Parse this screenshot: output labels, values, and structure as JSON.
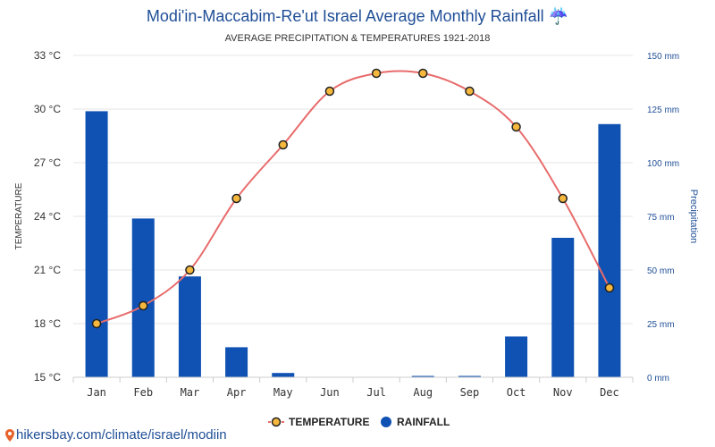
{
  "colors": {
    "title": "#1f4e96",
    "bar": "#0f52b3",
    "line": "#e86b6b",
    "marker_fill": "#f5b83d",
    "marker_stroke": "#222222",
    "grid": "#e6e6e6",
    "axis_right": "#1f4e96"
  },
  "icons": {
    "title_icon": "umbrella-rain-icon",
    "source_icon": "map-pin-icon"
  },
  "footer": {
    "source": "hikersbay.com/climate/israel/modiin"
  },
  "chart_data": {
    "type": "bar",
    "title": "Modi'in-Maccabim-Re'ut Israel Average Monthly Rainfall ☔",
    "subtitle": "AVERAGE PRECIPITATION & TEMPERATURES 1921-2018",
    "categories": [
      "Jan",
      "Feb",
      "Mar",
      "Apr",
      "May",
      "Jun",
      "Jul",
      "Aug",
      "Sep",
      "Oct",
      "Nov",
      "Dec"
    ],
    "series": [
      {
        "name": "TEMPERATURE",
        "type": "line",
        "axis": "left",
        "values": [
          18,
          19,
          21,
          25,
          28,
          31,
          32,
          32,
          31,
          29,
          25,
          20
        ]
      },
      {
        "name": "RAINFALL",
        "type": "bar",
        "axis": "right",
        "values": [
          124,
          74,
          47,
          14,
          2,
          0,
          0,
          0.5,
          0.5,
          19,
          65,
          118
        ]
      }
    ],
    "ylabel_left": "TEMPERATURE",
    "ylabel_right": "Precipitation",
    "ylim_left": [
      15,
      33
    ],
    "ylim_right": [
      0,
      150
    ],
    "yticks_left": [
      "15 °C",
      "18 °C",
      "21 °C",
      "24 °C",
      "27 °C",
      "30 °C",
      "33 °C"
    ],
    "yticks_right": [
      "0 mm",
      "25 mm",
      "50 mm",
      "75 mm",
      "100 mm",
      "125 mm",
      "150 mm"
    ],
    "grid": true,
    "legend_position": "bottom-center"
  }
}
